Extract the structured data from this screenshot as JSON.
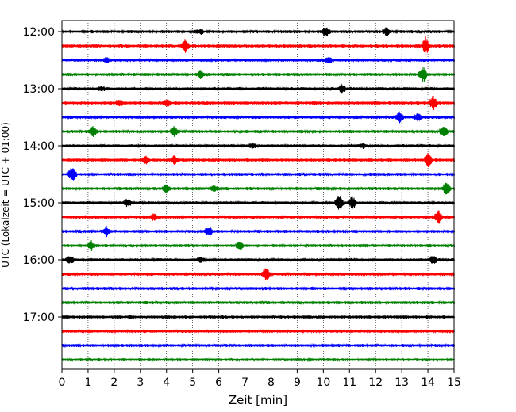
{
  "chart_data": {
    "type": "line",
    "title": "",
    "xlabel": "Zeit  [min]",
    "ylabel": "UTC (Lokalzeit = UTC + 01:00)",
    "xlim": [
      0,
      15
    ],
    "x_ticks": [
      0,
      1,
      2,
      3,
      4,
      5,
      6,
      7,
      8,
      9,
      10,
      11,
      12,
      13,
      14,
      15
    ],
    "x_tick_labels": [
      "0",
      "1",
      "2",
      "3",
      "4",
      "5",
      "6",
      "7",
      "8",
      "9",
      "10",
      "11",
      "12",
      "13",
      "14",
      "15"
    ],
    "y_ticks": [
      "12:00",
      "13:00",
      "14:00",
      "15:00",
      "16:00",
      "17:00"
    ],
    "grid": "vertical dotted lines at each minute",
    "legend": "none",
    "trace_interval_minutes": 15,
    "color_cycle": [
      "#000000",
      "#ff0000",
      "#0000ff",
      "#008000"
    ],
    "traces": [
      {
        "start": "12:00",
        "color": "#000000",
        "events": [
          [
            10.1,
            1.0
          ],
          [
            12.4,
            0.8
          ],
          [
            5.3,
            0.5
          ]
        ]
      },
      {
        "start": "12:15",
        "color": "#ff0000",
        "events": [
          [
            4.7,
            1.5
          ],
          [
            13.9,
            2.0
          ]
        ]
      },
      {
        "start": "12:30",
        "color": "#0000ff",
        "events": [
          [
            1.7,
            0.6
          ],
          [
            10.2,
            0.6
          ]
        ]
      },
      {
        "start": "12:45",
        "color": "#008000",
        "events": [
          [
            5.3,
            0.8
          ],
          [
            13.8,
            1.8
          ]
        ]
      },
      {
        "start": "13:00",
        "color": "#000000",
        "events": [
          [
            10.7,
            1.0
          ],
          [
            1.5,
            0.5
          ]
        ]
      },
      {
        "start": "13:15",
        "color": "#ff0000",
        "events": [
          [
            2.2,
            0.8
          ],
          [
            4.0,
            1.0
          ],
          [
            14.2,
            1.6
          ]
        ]
      },
      {
        "start": "13:30",
        "color": "#0000ff",
        "events": [
          [
            12.9,
            1.2
          ],
          [
            13.6,
            1.0
          ]
        ]
      },
      {
        "start": "13:45",
        "color": "#008000",
        "events": [
          [
            1.2,
            1.0
          ],
          [
            4.3,
            1.2
          ],
          [
            14.6,
            1.5
          ]
        ]
      },
      {
        "start": "14:00",
        "color": "#000000",
        "events": [
          [
            7.3,
            0.5
          ],
          [
            11.5,
            0.6
          ]
        ]
      },
      {
        "start": "14:15",
        "color": "#ff0000",
        "events": [
          [
            3.2,
            0.8
          ],
          [
            4.3,
            0.8
          ],
          [
            14.0,
            1.5
          ]
        ]
      },
      {
        "start": "14:30",
        "color": "#0000ff",
        "events": [
          [
            0.4,
            1.8
          ]
        ]
      },
      {
        "start": "14:45",
        "color": "#008000",
        "events": [
          [
            4.0,
            1.0
          ],
          [
            5.8,
            0.6
          ],
          [
            14.7,
            1.5
          ]
        ]
      },
      {
        "start": "15:00",
        "color": "#000000",
        "events": [
          [
            2.5,
            0.8
          ],
          [
            10.6,
            2.0
          ],
          [
            11.1,
            1.5
          ]
        ]
      },
      {
        "start": "15:15",
        "color": "#ff0000",
        "events": [
          [
            3.5,
            0.8
          ],
          [
            14.4,
            1.5
          ]
        ]
      },
      {
        "start": "15:30",
        "color": "#0000ff",
        "events": [
          [
            1.7,
            1.0
          ],
          [
            5.6,
            1.0
          ]
        ]
      },
      {
        "start": "15:45",
        "color": "#008000",
        "events": [
          [
            1.1,
            1.0
          ],
          [
            6.8,
            0.8
          ]
        ]
      },
      {
        "start": "16:00",
        "color": "#000000",
        "events": [
          [
            0.3,
            0.8
          ],
          [
            5.3,
            0.6
          ],
          [
            14.2,
            0.8
          ]
        ]
      },
      {
        "start": "16:15",
        "color": "#ff0000",
        "events": [
          [
            7.8,
            1.6
          ]
        ]
      },
      {
        "start": "16:30",
        "color": "#0000ff",
        "events": []
      },
      {
        "start": "16:45",
        "color": "#008000",
        "events": []
      },
      {
        "start": "17:00",
        "color": "#000000",
        "events": []
      },
      {
        "start": "17:15",
        "color": "#ff0000",
        "events": []
      },
      {
        "start": "17:30",
        "color": "#0000ff",
        "events": []
      },
      {
        "start": "17:45",
        "color": "#008000",
        "events": []
      }
    ]
  }
}
